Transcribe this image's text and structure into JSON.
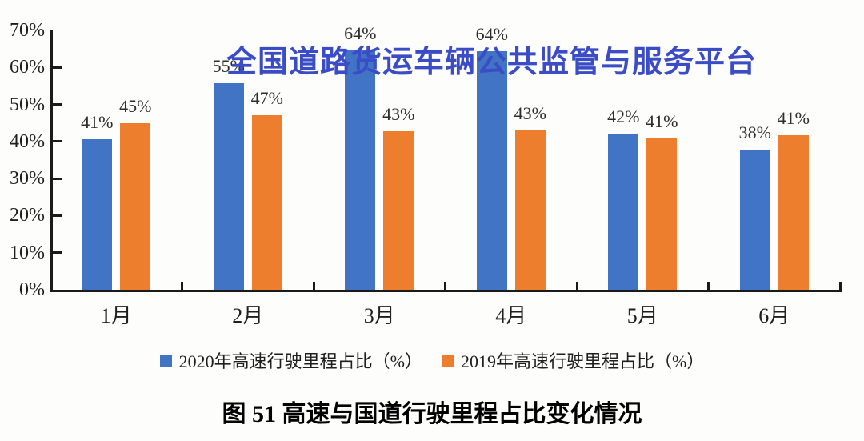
{
  "watermark": {
    "text": "全国道路货运车辆公共监管与服务平台",
    "color": "#3b4cc7"
  },
  "caption": {
    "text": "图 51 高速与国道行驶里程占比变化情况"
  },
  "chart_data": {
    "type": "bar",
    "title": "",
    "xlabel": "",
    "ylabel": "",
    "categories": [
      "1月",
      "2月",
      "3月",
      "4月",
      "5月",
      "6月"
    ],
    "series": [
      {
        "name": "2020年高速行驶里程占比（%）",
        "color": "#4274c6",
        "values": [
          41,
          55,
          64,
          64,
          42,
          38
        ],
        "labels": [
          "41%",
          "55%",
          "64%",
          "64%",
          "42%",
          "38%"
        ],
        "bar_heights_pct": [
          40.6,
          55.8,
          64.5,
          64.3,
          42.1,
          37.8
        ]
      },
      {
        "name": "2019年高速行驶里程占比（%）",
        "color": "#ec7e2e",
        "values": [
          45,
          47,
          43,
          43,
          41,
          41
        ],
        "labels": [
          "45%",
          "47%",
          "43%",
          "43%",
          "41%",
          "41%"
        ],
        "bar_heights_pct": [
          45.0,
          47.0,
          42.7,
          42.9,
          40.8,
          41.7
        ]
      }
    ],
    "ylabel_ticks": [
      "0%",
      "10%",
      "20%",
      "30%",
      "40%",
      "50%",
      "60%",
      "70%"
    ],
    "ylim": [
      0,
      70
    ],
    "grid": false,
    "legend_position": "bottom"
  }
}
